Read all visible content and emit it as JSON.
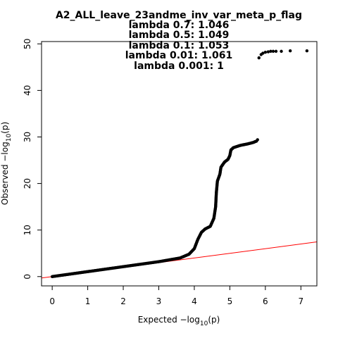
{
  "chart_data": {
    "type": "scatter",
    "title_lines": [
      "A2_ALL_leave_23andme_inv_var_meta_p_flag",
      "lambda 0.7: 1.046",
      "lambda 0.5: 1.049",
      "lambda 0.1: 1.053",
      "lambda 0.01: 1.061",
      "lambda 0.001: 1"
    ],
    "xlabel": {
      "prefix": "Expected  −log",
      "subscript": "10",
      "suffix": "(p)"
    },
    "ylabel": {
      "prefix": "Observed  −log",
      "subscript": "10",
      "suffix": "(p)"
    },
    "xlim": [
      -0.3,
      7.45
    ],
    "ylim": [
      -2,
      50.5
    ],
    "x_ticks": [
      0,
      1,
      2,
      3,
      4,
      5,
      6,
      7
    ],
    "y_ticks": [
      0,
      10,
      20,
      30,
      40,
      50
    ],
    "grid": false,
    "reference_line": {
      "slope": 1,
      "intercept": 0,
      "color": "#ff0000"
    },
    "point_color": "#000000",
    "curve": [
      {
        "x": 0,
        "y": 0
      },
      {
        "x": 3.0,
        "y": 3.2
      },
      {
        "x": 3.6,
        "y": 4.0
      },
      {
        "x": 3.85,
        "y": 4.8
      },
      {
        "x": 4.0,
        "y": 6.0
      },
      {
        "x": 4.1,
        "y": 8.0
      },
      {
        "x": 4.2,
        "y": 9.5
      },
      {
        "x": 4.3,
        "y": 10.2
      },
      {
        "x": 4.45,
        "y": 10.8
      },
      {
        "x": 4.55,
        "y": 12.5
      },
      {
        "x": 4.6,
        "y": 15.0
      },
      {
        "x": 4.62,
        "y": 18.0
      },
      {
        "x": 4.65,
        "y": 20.5
      },
      {
        "x": 4.72,
        "y": 22.0
      },
      {
        "x": 4.75,
        "y": 23.5
      },
      {
        "x": 4.85,
        "y": 24.6
      },
      {
        "x": 4.95,
        "y": 25.2
      },
      {
        "x": 5.0,
        "y": 26.0
      },
      {
        "x": 5.03,
        "y": 27.2
      },
      {
        "x": 5.1,
        "y": 27.7
      },
      {
        "x": 5.3,
        "y": 28.2
      },
      {
        "x": 5.5,
        "y": 28.5
      },
      {
        "x": 5.65,
        "y": 28.8
      },
      {
        "x": 5.75,
        "y": 29.1
      }
    ],
    "points": [
      {
        "x": 5.78,
        "y": 29.4
      },
      {
        "x": 5.82,
        "y": 47.0
      },
      {
        "x": 5.88,
        "y": 47.7
      },
      {
        "x": 5.93,
        "y": 48.0
      },
      {
        "x": 6.0,
        "y": 48.2
      },
      {
        "x": 6.08,
        "y": 48.3
      },
      {
        "x": 6.15,
        "y": 48.4
      },
      {
        "x": 6.22,
        "y": 48.4
      },
      {
        "x": 6.3,
        "y": 48.4
      },
      {
        "x": 6.45,
        "y": 48.4
      },
      {
        "x": 6.7,
        "y": 48.5
      },
      {
        "x": 7.17,
        "y": 48.5
      }
    ]
  }
}
